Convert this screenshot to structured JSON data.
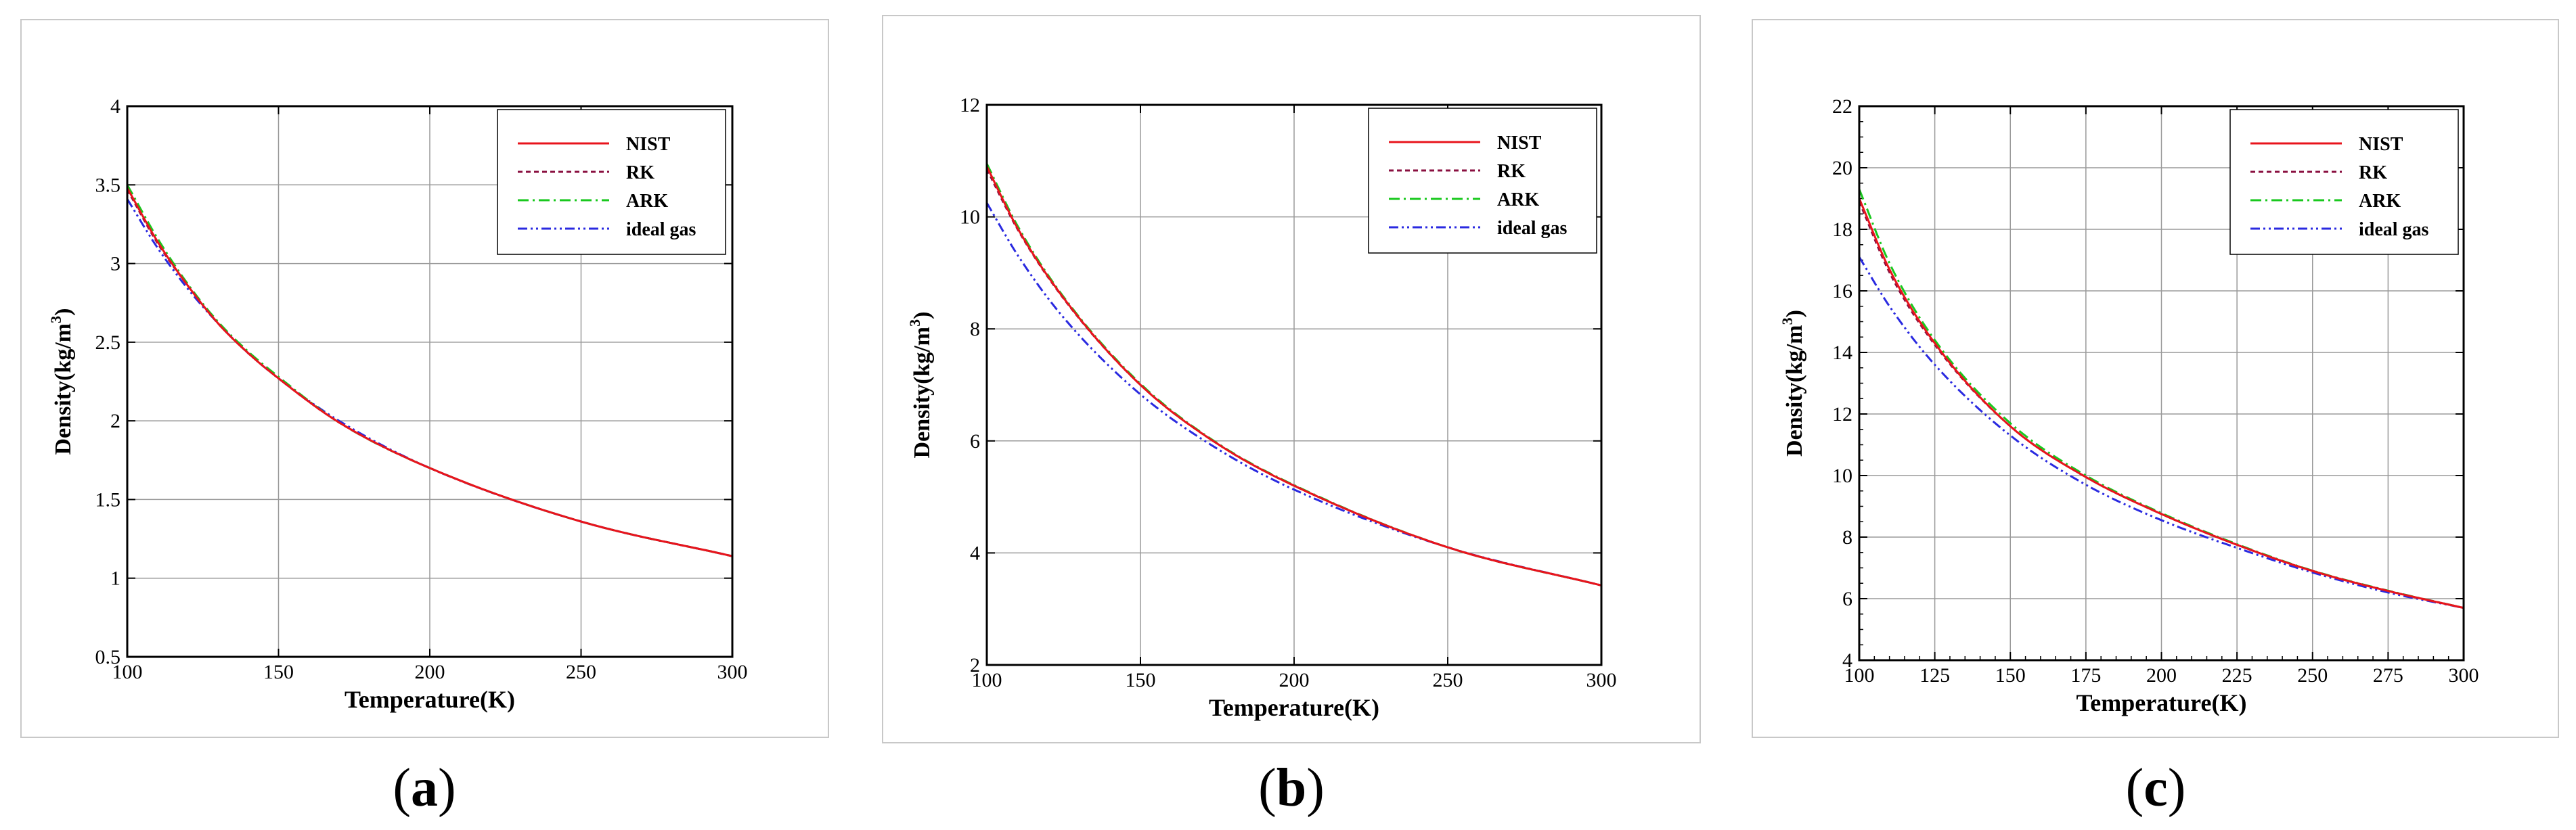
{
  "figure": {
    "panels": [
      {
        "label": "a",
        "caption_open": "(",
        "caption_close": ")"
      },
      {
        "label": "b",
        "caption_open": "(",
        "caption_close": ")"
      },
      {
        "label": "c",
        "caption_open": "(",
        "caption_close": ")"
      }
    ]
  },
  "colors": {
    "NIST": "#e8141c",
    "RK": "#8a1040",
    "ARK": "#19c81e",
    "ideal gas": "#2a2ae0"
  },
  "chart_data": [
    {
      "type": "line",
      "title": "",
      "xlabel": "Temperature(K)",
      "ylabel_main": "Density(kg/m",
      "ylabel_sup": "3",
      "ylabel_close": ")",
      "xlim": [
        100,
        300
      ],
      "ylim": [
        0.5,
        4
      ],
      "xticks": [
        100,
        150,
        200,
        250,
        300
      ],
      "yticks": [
        0.5,
        1,
        1.5,
        2,
        2.5,
        3,
        3.5,
        4
      ],
      "xticklabels": [
        "100",
        "150",
        "200",
        "250",
        "300"
      ],
      "yticklabels": [
        "0.5",
        "1",
        "1.5",
        "2",
        "2.5",
        "3",
        "3.5",
        "4"
      ],
      "grid": true,
      "legend_position": "top-right",
      "x": [
        100,
        110,
        120,
        130,
        140,
        150,
        170,
        200,
        250,
        300
      ],
      "series": [
        {
          "name": "NIST",
          "dash": "solid",
          "values": [
            3.48,
            3.14,
            2.86,
            2.62,
            2.43,
            2.27,
            1.99,
            1.7,
            1.36,
            1.14
          ]
        },
        {
          "name": "RK",
          "dash": "dash",
          "values": [
            3.47,
            3.13,
            2.86,
            2.62,
            2.43,
            2.27,
            1.99,
            1.7,
            1.36,
            1.14
          ]
        },
        {
          "name": "ARK",
          "dash": "dashdot",
          "values": [
            3.5,
            3.16,
            2.87,
            2.63,
            2.44,
            2.28,
            1.99,
            1.7,
            1.36,
            1.14
          ]
        },
        {
          "name": "ideal gas",
          "dash": "dashdotdot",
          "values": [
            3.41,
            3.1,
            2.84,
            2.62,
            2.43,
            2.27,
            2.0,
            1.7,
            1.36,
            1.14
          ]
        }
      ]
    },
    {
      "type": "line",
      "title": "",
      "xlabel": "Temperature(K)",
      "ylabel_main": "Density(kg/m",
      "ylabel_sup": "3",
      "ylabel_close": ")",
      "xlim": [
        100,
        300
      ],
      "ylim": [
        2,
        12
      ],
      "xticks": [
        100,
        150,
        200,
        250,
        300
      ],
      "yticks": [
        2,
        4,
        6,
        8,
        10,
        12
      ],
      "xticklabels": [
        "100",
        "150",
        "200",
        "250",
        "300"
      ],
      "yticklabels": [
        "2",
        "4",
        "6",
        "8",
        "10",
        "12"
      ],
      "grid": true,
      "legend_position": "top-right",
      "x": [
        100,
        110,
        125,
        150,
        175,
        200,
        250,
        300
      ],
      "series": [
        {
          "name": "NIST",
          "dash": "solid",
          "values": [
            10.9,
            9.8,
            8.55,
            7.0,
            5.95,
            5.2,
            4.1,
            3.42
          ]
        },
        {
          "name": "RK",
          "dash": "dash",
          "values": [
            10.85,
            9.78,
            8.54,
            7.0,
            5.95,
            5.2,
            4.1,
            3.42
          ]
        },
        {
          "name": "ARK",
          "dash": "dashdot",
          "values": [
            10.95,
            9.84,
            8.57,
            7.02,
            5.96,
            5.21,
            4.1,
            3.42
          ]
        },
        {
          "name": "ideal gas",
          "dash": "dashdotdot",
          "values": [
            10.25,
            9.32,
            8.2,
            6.83,
            5.86,
            5.13,
            4.1,
            3.42
          ]
        }
      ]
    },
    {
      "type": "line",
      "title": "",
      "xlabel": "Temperature(K)",
      "ylabel_main": "Density(kg/m",
      "ylabel_sup": "3",
      "ylabel_close": ")",
      "xlim": [
        100,
        300
      ],
      "ylim": [
        4,
        22
      ],
      "xticks": [
        100,
        125,
        150,
        175,
        200,
        225,
        250,
        275,
        300
      ],
      "yticks": [
        4,
        6,
        8,
        10,
        12,
        14,
        16,
        18,
        20,
        22
      ],
      "xticklabels": [
        "100",
        "125",
        "150",
        "175",
        "200",
        "225",
        "250",
        "275",
        "300"
      ],
      "yticklabels": [
        "4",
        "6",
        "8",
        "10",
        "12",
        "14",
        "16",
        "18",
        "20",
        "22"
      ],
      "grid": true,
      "legend_position": "top-right",
      "x": [
        100,
        110,
        125,
        150,
        175,
        200,
        225,
        250,
        275,
        300
      ],
      "series": [
        {
          "name": "NIST",
          "dash": "solid",
          "values": [
            19.0,
            16.7,
            14.3,
            11.6,
            9.95,
            8.75,
            7.75,
            6.9,
            6.25,
            5.7
          ]
        },
        {
          "name": "RK",
          "dash": "dash",
          "values": [
            18.9,
            16.6,
            14.25,
            11.6,
            9.95,
            8.75,
            7.75,
            6.9,
            6.25,
            5.7
          ]
        },
        {
          "name": "ARK",
          "dash": "dashdot",
          "values": [
            19.3,
            16.9,
            14.4,
            11.7,
            10.0,
            8.78,
            7.77,
            6.91,
            6.26,
            5.7
          ]
        },
        {
          "name": "ideal gas",
          "dash": "dashdotdot",
          "values": [
            17.1,
            15.5,
            13.6,
            11.3,
            9.7,
            8.55,
            7.65,
            6.85,
            6.2,
            5.7
          ]
        }
      ]
    }
  ]
}
